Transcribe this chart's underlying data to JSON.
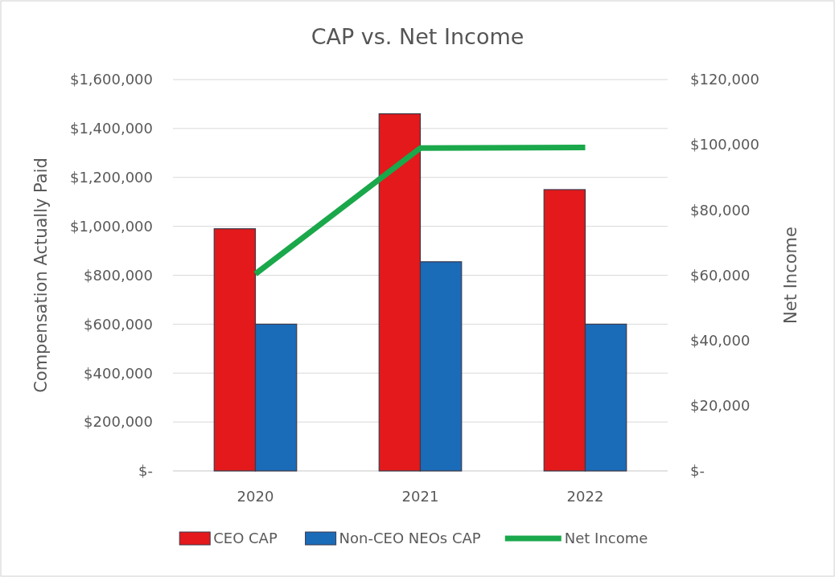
{
  "chart_data": {
    "type": "bar",
    "title": "CAP vs. Net Income",
    "ylabel": "Compensation Actually Paid",
    "y2label": "Net Income",
    "categories": [
      "2020",
      "2021",
      "2022"
    ],
    "series": [
      {
        "name": "CEO CAP",
        "color": "#e3191b",
        "values": [
          990000,
          1460000,
          1150000
        ]
      },
      {
        "name": "Non-CEO NEOs CAP",
        "color": "#1a6bb8",
        "values": [
          600000,
          855000,
          600000
        ]
      },
      {
        "name": "Net Income",
        "type": "line",
        "axis": "y2",
        "color": "#1aa84b",
        "values": [
          60400,
          99000,
          99200
        ]
      }
    ],
    "ylim": [
      0,
      1600000
    ],
    "yticks": [
      {
        "value": 0,
        "label": "$-"
      },
      {
        "value": 200000,
        "label": "$200,000"
      },
      {
        "value": 400000,
        "label": "$400,000"
      },
      {
        "value": 600000,
        "label": "$600,000"
      },
      {
        "value": 800000,
        "label": "$800,000"
      },
      {
        "value": 1000000,
        "label": "$1,000,000"
      },
      {
        "value": 1200000,
        "label": "$1,200,000"
      },
      {
        "value": 1400000,
        "label": "$1,400,000"
      },
      {
        "value": 1600000,
        "label": "$1,600,000"
      }
    ],
    "y2lim": [
      0,
      120000
    ],
    "y2ticks": [
      {
        "value": 0,
        "label": "$-"
      },
      {
        "value": 20000,
        "label": "$20,000"
      },
      {
        "value": 40000,
        "label": "$40,000"
      },
      {
        "value": 60000,
        "label": "$60,000"
      },
      {
        "value": 80000,
        "label": "$80,000"
      },
      {
        "value": 100000,
        "label": "$100,000"
      },
      {
        "value": 120000,
        "label": "$120,000"
      }
    ],
    "grid": "y",
    "legend": "bottom"
  }
}
